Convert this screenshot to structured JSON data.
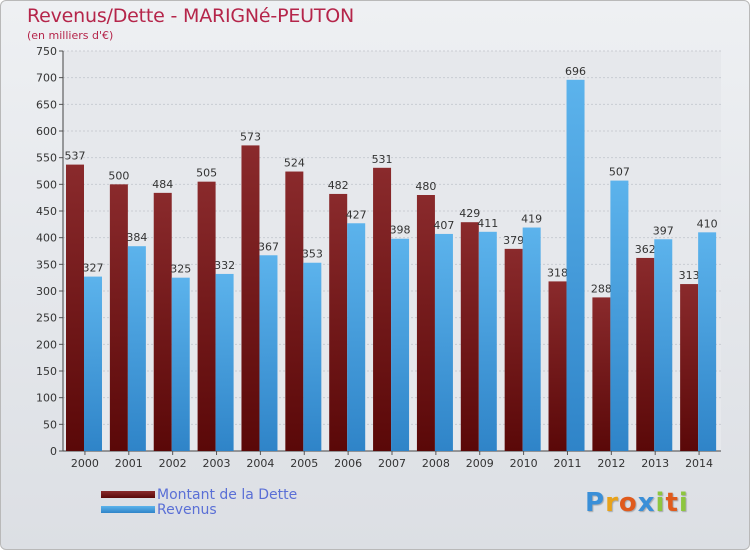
{
  "chart_data": {
    "type": "bar",
    "title": "Revenus/Dette - MARIGNé-PEUTON",
    "subtitle": "(en milliers d'€)",
    "categories": [
      "2000",
      "2001",
      "2002",
      "2003",
      "2004",
      "2005",
      "2006",
      "2007",
      "2008",
      "2009",
      "2010",
      "2011",
      "2012",
      "2013",
      "2014"
    ],
    "series": [
      {
        "name": "Montant de la Dette",
        "color": "#7d1e20",
        "values": [
          537,
          500,
          484,
          505,
          573,
          524,
          482,
          531,
          480,
          429,
          379,
          318,
          288,
          362,
          313
        ]
      },
      {
        "name": "Revenus",
        "color": "#4ea8e6",
        "values": [
          327,
          384,
          325,
          332,
          367,
          353,
          427,
          398,
          407,
          411,
          419,
          696,
          507,
          397,
          410
        ]
      }
    ],
    "ylim": [
      0,
      750
    ],
    "yticks": [
      0,
      50,
      100,
      150,
      200,
      250,
      300,
      350,
      400,
      450,
      500,
      550,
      600,
      650,
      700,
      750
    ],
    "grid": true,
    "legend": "bottom-left"
  },
  "logo": {
    "letters": [
      "P",
      "r",
      "o",
      "x",
      "i",
      "t",
      "i"
    ],
    "colors": [
      "#3a8fd8",
      "#e8a21a",
      "#e05a1c",
      "#3a8fd8",
      "#8dc63f",
      "#e05a1c",
      "#8dc63f"
    ]
  }
}
